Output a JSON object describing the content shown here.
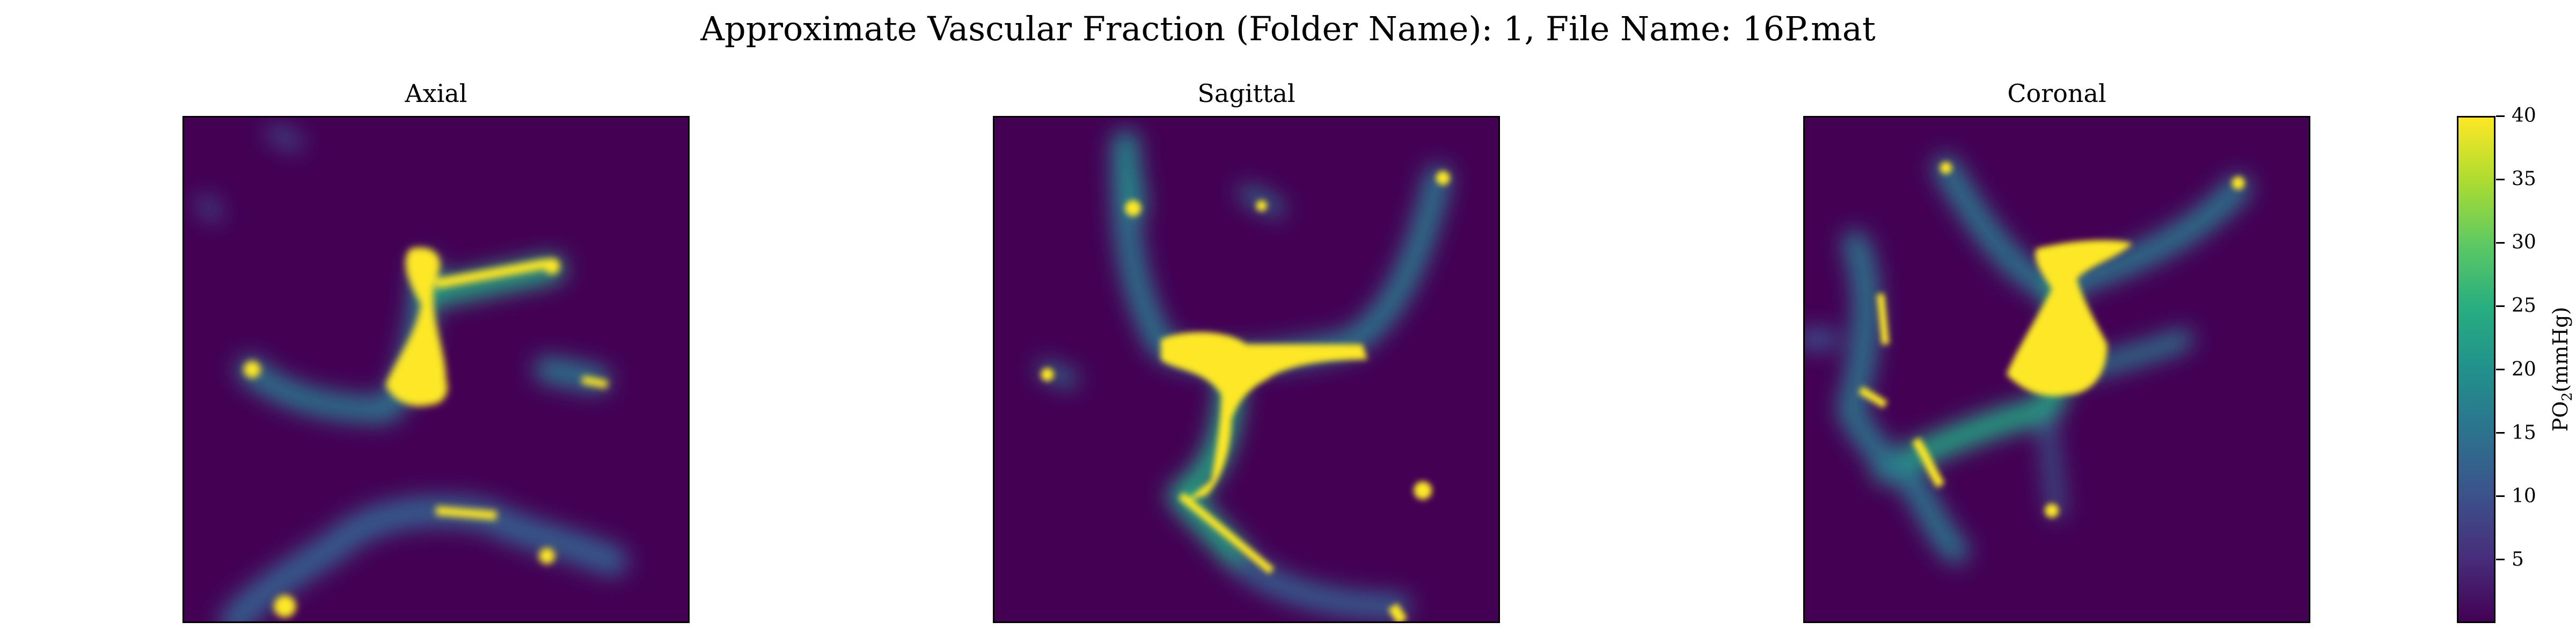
{
  "chart_data": {
    "type": "heatmap",
    "title": "Approximate Vascular Fraction (Folder Name): 1, File Name: 16P.mat",
    "colormap": "viridis",
    "colors": {
      "low": "#440154",
      "mid": "#21918c",
      "high": "#fde725"
    },
    "panels": [
      {
        "title": "Axial"
      },
      {
        "title": "Sagittal"
      },
      {
        "title": "Coronal"
      }
    ],
    "colorbar": {
      "label_main": "PO",
      "label_sub": "2",
      "label_unit": "(mmHg)",
      "range": [
        0,
        40
      ],
      "ticks": [
        "5",
        "10",
        "15",
        "20",
        "25",
        "30",
        "35",
        "40"
      ]
    },
    "grid": false
  }
}
